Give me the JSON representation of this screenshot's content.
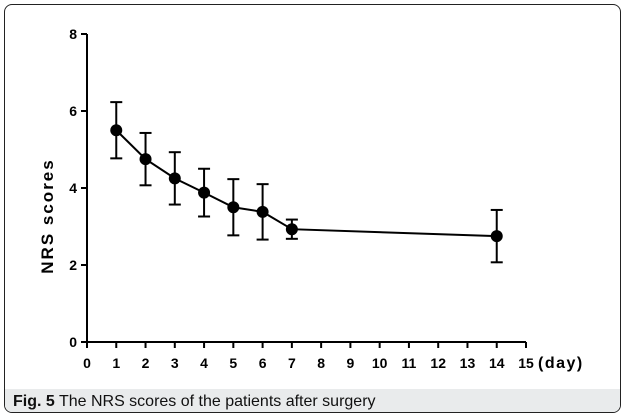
{
  "chart_data": {
    "type": "line",
    "title": "",
    "xlabel": "(day)",
    "ylabel": "NRS scores",
    "xlim": [
      0,
      15
    ],
    "ylim": [
      0,
      8
    ],
    "x_ticks": [
      "0",
      "1",
      "2",
      "3",
      "4",
      "5",
      "6",
      "7",
      "8",
      "9",
      "10",
      "11",
      "12",
      "13",
      "14",
      "15"
    ],
    "y_ticks": [
      "0",
      "2",
      "4",
      "6",
      "8"
    ],
    "grid": false,
    "series": [
      {
        "x": [
          1,
          2,
          3,
          4,
          5,
          6,
          7,
          14
        ],
        "y": [
          5.5,
          4.75,
          4.25,
          3.88,
          3.5,
          3.38,
          2.93,
          2.75
        ],
        "error": [
          0.73,
          0.68,
          0.68,
          0.62,
          0.73,
          0.72,
          0.25,
          0.68
        ]
      }
    ],
    "colors": {
      "line": "#000000",
      "marker": "#000000"
    }
  },
  "caption": {
    "label": "Fig. 5",
    "text": "The NRS scores of the patients after surgery"
  }
}
